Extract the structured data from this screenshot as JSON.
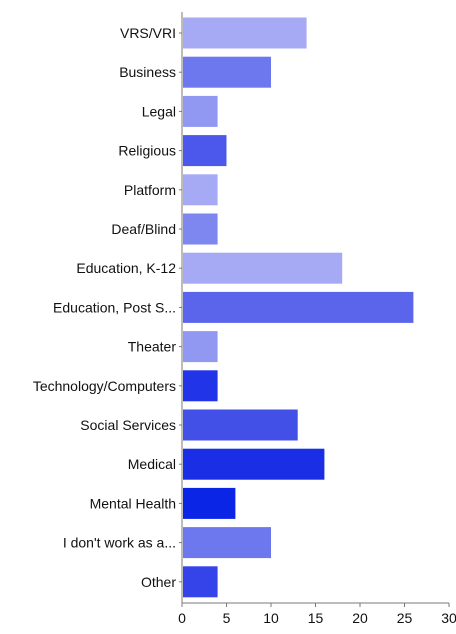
{
  "chart_data": {
    "type": "bar",
    "orientation": "horizontal",
    "categories": [
      "VRS/VRI",
      "Business",
      "Legal",
      "Religious",
      "Platform",
      "Deaf/Blind",
      "Education, K-12",
      "Education, Post S...",
      "Theater",
      "Technology/Computers",
      "Social Services",
      "Medical",
      "Mental Health",
      "I don't work as a...",
      "Other"
    ],
    "values": [
      14,
      10,
      4,
      5,
      4,
      4,
      18,
      26,
      4,
      4,
      13,
      16,
      6,
      10,
      4
    ],
    "colors": [
      "#a6aaf4",
      "#6e78ee",
      "#9198f2",
      "#4c58eb",
      "#a6aaf4",
      "#7e86ef",
      "#a6aaf4",
      "#5a65ec",
      "#9198f2",
      "#2234e8",
      "#4250e8",
      "#1a2ee6",
      "#0a25e6",
      "#6e78ee",
      "#3444e8"
    ],
    "xlim": [
      0,
      30
    ],
    "xticks": [
      0,
      5,
      10,
      15,
      20,
      25,
      30
    ],
    "title": "",
    "xlabel": "",
    "ylabel": "",
    "grid": false,
    "legend": "none"
  }
}
